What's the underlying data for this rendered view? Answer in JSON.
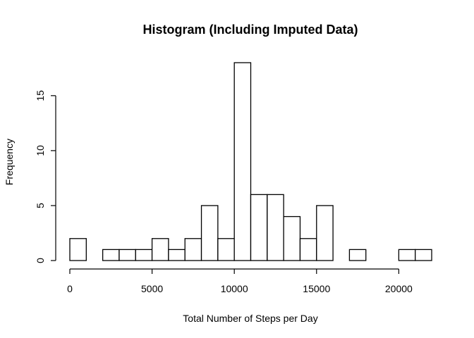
{
  "chart_data": {
    "type": "bar",
    "title": "Histogram (Including Imputed Data)",
    "xlabel": "Total Number of Steps per Day",
    "ylabel": "Frequency",
    "bin_width": 1000,
    "bin_edges_start": [
      0,
      1000,
      2000,
      3000,
      4000,
      5000,
      6000,
      7000,
      8000,
      9000,
      10000,
      11000,
      12000,
      13000,
      14000,
      15000,
      16000,
      17000,
      18000,
      19000,
      20000,
      21000
    ],
    "values": [
      2,
      0,
      1,
      1,
      1,
      2,
      1,
      2,
      5,
      2,
      18,
      6,
      6,
      4,
      2,
      5,
      0,
      1,
      0,
      0,
      1,
      1
    ],
    "xlim": [
      0,
      22000
    ],
    "ylim": [
      0,
      18
    ],
    "x_ticks": [
      0,
      5000,
      10000,
      15000,
      20000
    ],
    "y_ticks": [
      0,
      5,
      10,
      15
    ],
    "grid": false,
    "legend": "none"
  }
}
